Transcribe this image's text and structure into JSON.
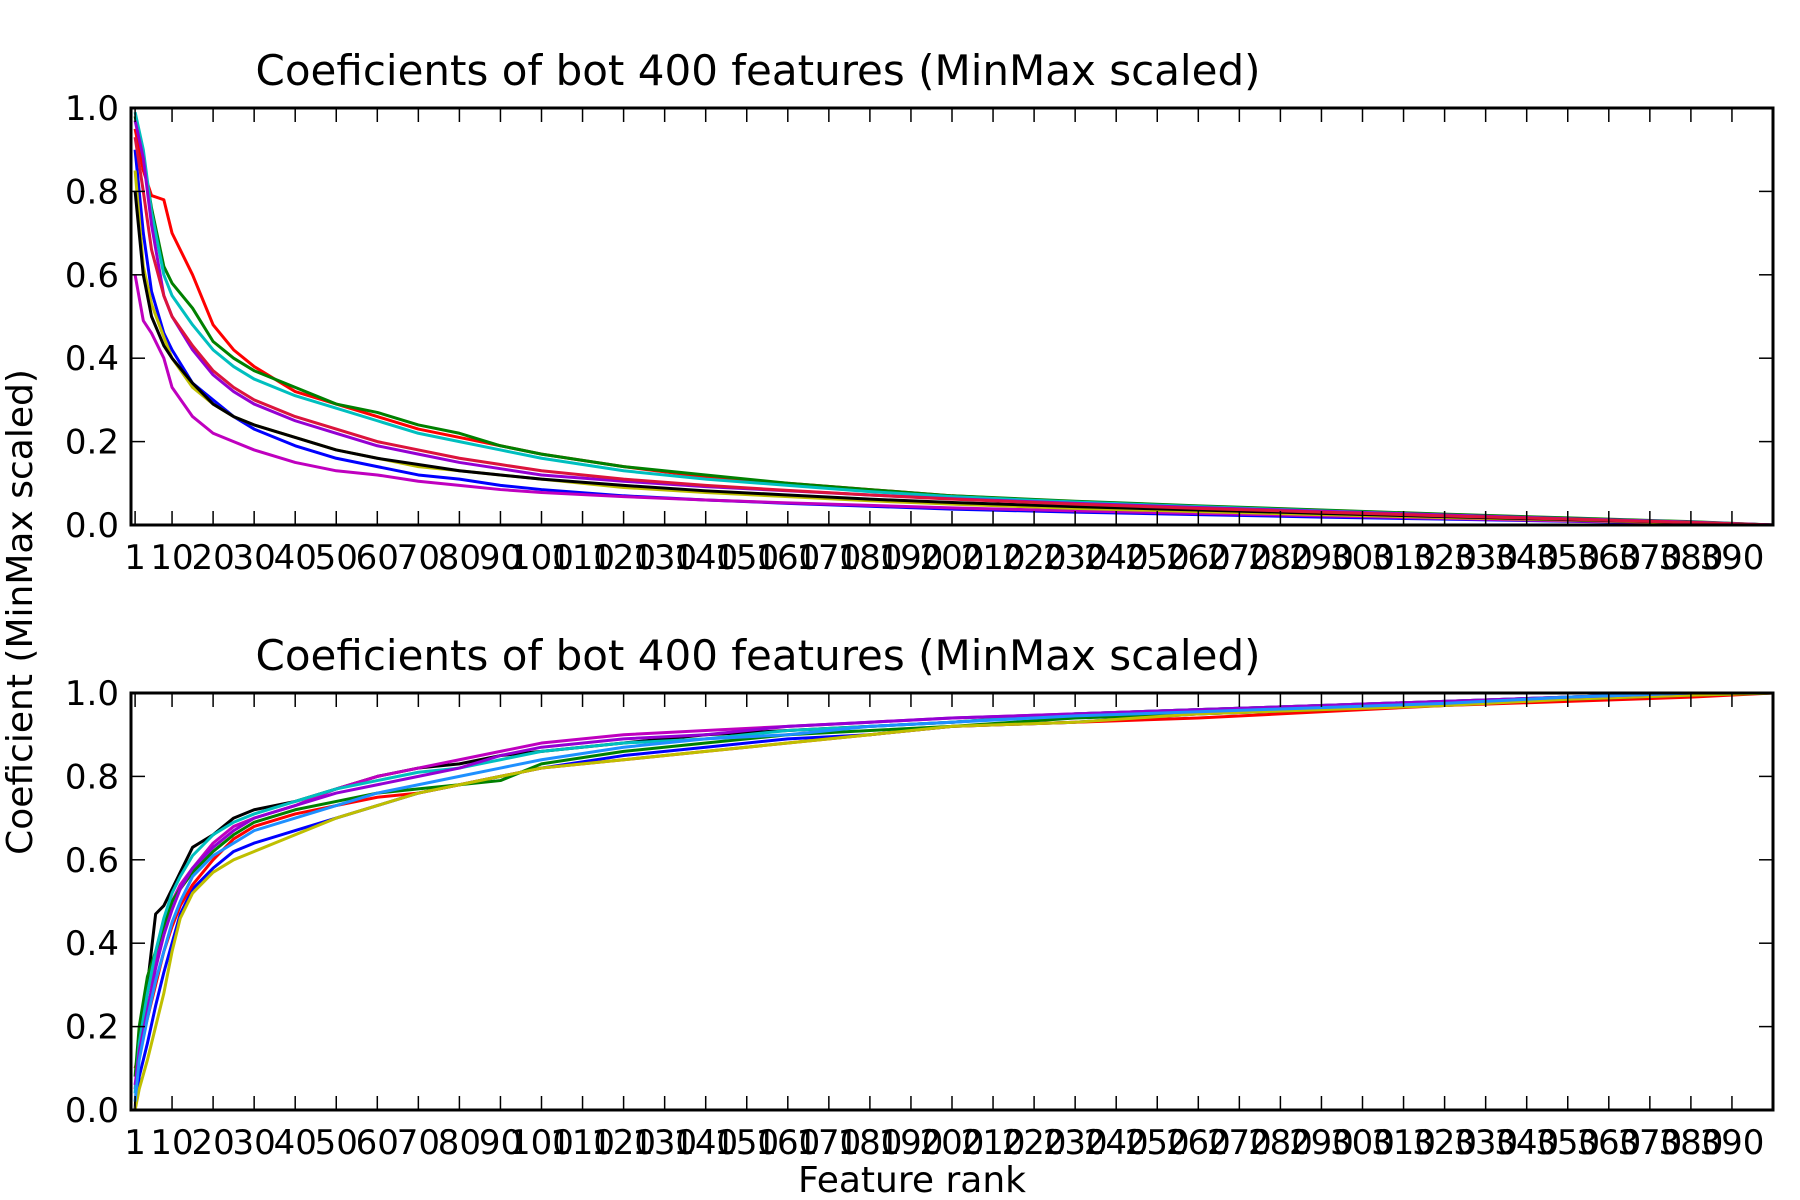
{
  "figure": {
    "ylabel": "Coeficient (MinMax scaled)",
    "xlabel": "Feature rank"
  },
  "chart_data": [
    {
      "type": "line",
      "title": "Coeficients of bot 400 features (MinMax scaled)",
      "xlabel": "",
      "ylabel": "",
      "xlim": [
        0,
        400
      ],
      "ylim": [
        0.0,
        1.0
      ],
      "grid": false,
      "legend": "none",
      "x_ticks": [
        1,
        10,
        20,
        30,
        40,
        50,
        60,
        70,
        80,
        90,
        100,
        110,
        120,
        130,
        140,
        150,
        160,
        170,
        180,
        190,
        200,
        210,
        220,
        230,
        240,
        250,
        260,
        270,
        280,
        290,
        300,
        310,
        320,
        330,
        340,
        350,
        360,
        370,
        380,
        390
      ],
      "x_tick_labels": [
        "1",
        "10",
        "20",
        "30",
        "40",
        "50",
        "60",
        "70",
        "80",
        "90",
        "100",
        "110",
        "120",
        "130",
        "140",
        "150",
        "160",
        "170",
        "180",
        "190",
        "200",
        "210",
        "220",
        "230",
        "240",
        "250",
        "260",
        "270",
        "280",
        "290",
        "300",
        "310",
        "320",
        "330",
        "340",
        "350",
        "360",
        "370",
        "380",
        "390"
      ],
      "y_ticks": [
        0.0,
        0.2,
        0.4,
        0.6,
        0.8,
        1.0
      ],
      "y_tick_labels": [
        "0.0",
        "0.2",
        "0.4",
        "0.6",
        "0.8",
        "1.0"
      ],
      "x": [
        1,
        3,
        5,
        8,
        10,
        15,
        20,
        25,
        30,
        40,
        50,
        60,
        70,
        80,
        90,
        100,
        120,
        140,
        160,
        180,
        200,
        230,
        260,
        290,
        320,
        350,
        380,
        400
      ],
      "series": [
        {
          "color": "#ff0000",
          "values": [
            0.95,
            0.85,
            0.79,
            0.78,
            0.7,
            0.6,
            0.48,
            0.42,
            0.38,
            0.32,
            0.29,
            0.26,
            0.23,
            0.21,
            0.19,
            0.17,
            0.14,
            0.115,
            0.1,
            0.085,
            0.07,
            0.055,
            0.045,
            0.035,
            0.025,
            0.016,
            0.007,
            0.0
          ]
        },
        {
          "color": "#008000",
          "values": [
            0.98,
            0.88,
            0.76,
            0.62,
            0.58,
            0.52,
            0.44,
            0.4,
            0.37,
            0.33,
            0.29,
            0.27,
            0.24,
            0.22,
            0.19,
            0.17,
            0.14,
            0.12,
            0.1,
            0.085,
            0.07,
            0.057,
            0.046,
            0.036,
            0.026,
            0.017,
            0.008,
            0.0
          ]
        },
        {
          "color": "#0000ff",
          "values": [
            0.9,
            0.7,
            0.56,
            0.46,
            0.42,
            0.34,
            0.3,
            0.26,
            0.23,
            0.19,
            0.16,
            0.14,
            0.12,
            0.11,
            0.095,
            0.085,
            0.07,
            0.06,
            0.052,
            0.045,
            0.038,
            0.031,
            0.025,
            0.019,
            0.014,
            0.009,
            0.004,
            0.0
          ]
        },
        {
          "color": "#00bfbf",
          "values": [
            0.99,
            0.9,
            0.75,
            0.6,
            0.55,
            0.48,
            0.42,
            0.38,
            0.35,
            0.31,
            0.28,
            0.25,
            0.22,
            0.2,
            0.18,
            0.16,
            0.13,
            0.11,
            0.095,
            0.08,
            0.068,
            0.055,
            0.044,
            0.034,
            0.024,
            0.015,
            0.007,
            0.0
          ]
        },
        {
          "color": "#bf00bf",
          "values": [
            0.6,
            0.49,
            0.46,
            0.4,
            0.33,
            0.26,
            0.22,
            0.2,
            0.18,
            0.15,
            0.13,
            0.12,
            0.105,
            0.095,
            0.085,
            0.078,
            0.068,
            0.06,
            0.053,
            0.047,
            0.041,
            0.034,
            0.028,
            0.022,
            0.016,
            0.01,
            0.005,
            0.0
          ]
        },
        {
          "color": "#bfbf00",
          "values": [
            0.85,
            0.62,
            0.53,
            0.45,
            0.4,
            0.33,
            0.29,
            0.26,
            0.24,
            0.21,
            0.18,
            0.16,
            0.14,
            0.13,
            0.12,
            0.11,
            0.09,
            0.078,
            0.068,
            0.058,
            0.05,
            0.04,
            0.032,
            0.025,
            0.018,
            0.012,
            0.005,
            0.0
          ]
        },
        {
          "color": "#000000",
          "values": [
            0.8,
            0.6,
            0.5,
            0.43,
            0.4,
            0.34,
            0.29,
            0.26,
            0.24,
            0.21,
            0.18,
            0.16,
            0.145,
            0.13,
            0.12,
            0.11,
            0.095,
            0.082,
            0.072,
            0.062,
            0.054,
            0.044,
            0.036,
            0.028,
            0.02,
            0.013,
            0.006,
            0.0
          ]
        },
        {
          "color": "#9400d3",
          "values": [
            0.97,
            0.88,
            0.72,
            0.55,
            0.5,
            0.42,
            0.36,
            0.32,
            0.29,
            0.25,
            0.22,
            0.19,
            0.17,
            0.15,
            0.135,
            0.12,
            0.105,
            0.092,
            0.082,
            0.072,
            0.063,
            0.052,
            0.042,
            0.033,
            0.024,
            0.015,
            0.007,
            0.0
          ]
        },
        {
          "color": "#dc143c",
          "values": [
            0.93,
            0.8,
            0.66,
            0.55,
            0.5,
            0.43,
            0.37,
            0.33,
            0.3,
            0.26,
            0.23,
            0.2,
            0.18,
            0.16,
            0.145,
            0.13,
            0.11,
            0.095,
            0.083,
            0.072,
            0.062,
            0.05,
            0.04,
            0.031,
            0.022,
            0.014,
            0.006,
            0.0
          ]
        }
      ]
    },
    {
      "type": "line",
      "title": "Coeficients of bot 400 features (MinMax scaled)",
      "xlabel": "Feature rank",
      "ylabel": "",
      "xlim": [
        0,
        400
      ],
      "ylim": [
        0.0,
        1.0
      ],
      "grid": false,
      "legend": "none",
      "x_ticks": [
        1,
        10,
        20,
        30,
        40,
        50,
        60,
        70,
        80,
        90,
        100,
        110,
        120,
        130,
        140,
        150,
        160,
        170,
        180,
        190,
        200,
        210,
        220,
        230,
        240,
        250,
        260,
        270,
        280,
        290,
        300,
        310,
        320,
        330,
        340,
        350,
        360,
        370,
        380,
        390
      ],
      "x_tick_labels": [
        "1",
        "10",
        "20",
        "30",
        "40",
        "50",
        "60",
        "70",
        "80",
        "90",
        "100",
        "110",
        "120",
        "130",
        "140",
        "150",
        "160",
        "170",
        "180",
        "190",
        "200",
        "210",
        "220",
        "230",
        "240",
        "250",
        "260",
        "270",
        "280",
        "290",
        "300",
        "310",
        "320",
        "330",
        "340",
        "350",
        "360",
        "370",
        "380",
        "390"
      ],
      "y_ticks": [
        0.0,
        0.2,
        0.4,
        0.6,
        0.8,
        1.0
      ],
      "y_tick_labels": [
        "0.0",
        "0.2",
        "0.4",
        "0.6",
        "0.8",
        "1.0"
      ],
      "x": [
        1,
        2,
        4,
        6,
        8,
        10,
        12,
        15,
        20,
        25,
        30,
        40,
        50,
        60,
        70,
        80,
        90,
        100,
        120,
        140,
        160,
        180,
        200,
        230,
        260,
        290,
        320,
        350,
        380,
        400
      ],
      "series": [
        {
          "color": "#000000",
          "values": [
            0.0,
            0.18,
            0.3,
            0.47,
            0.49,
            0.53,
            0.57,
            0.63,
            0.66,
            0.7,
            0.72,
            0.74,
            0.77,
            0.8,
            0.82,
            0.83,
            0.85,
            0.86,
            0.88,
            0.9,
            0.91,
            0.92,
            0.93,
            0.95,
            0.96,
            0.97,
            0.98,
            0.99,
            1.0,
            1.0
          ]
        },
        {
          "color": "#bf00bf",
          "values": [
            0.05,
            0.15,
            0.28,
            0.36,
            0.42,
            0.5,
            0.54,
            0.58,
            0.64,
            0.68,
            0.7,
            0.73,
            0.77,
            0.8,
            0.82,
            0.84,
            0.86,
            0.88,
            0.9,
            0.91,
            0.92,
            0.93,
            0.94,
            0.95,
            0.96,
            0.97,
            0.98,
            0.99,
            1.0,
            1.0
          ]
        },
        {
          "color": "#0000ff",
          "values": [
            0.0,
            0.08,
            0.16,
            0.25,
            0.33,
            0.4,
            0.47,
            0.53,
            0.58,
            0.62,
            0.64,
            0.67,
            0.7,
            0.73,
            0.76,
            0.78,
            0.8,
            0.82,
            0.85,
            0.87,
            0.89,
            0.9,
            0.92,
            0.93,
            0.95,
            0.96,
            0.97,
            0.985,
            0.995,
            1.0
          ]
        },
        {
          "color": "#ff0000",
          "values": [
            0.1,
            0.14,
            0.22,
            0.3,
            0.38,
            0.44,
            0.49,
            0.54,
            0.6,
            0.65,
            0.68,
            0.71,
            0.73,
            0.75,
            0.76,
            0.78,
            0.8,
            0.82,
            0.84,
            0.86,
            0.88,
            0.9,
            0.92,
            0.93,
            0.94,
            0.955,
            0.97,
            0.98,
            0.99,
            1.0
          ]
        },
        {
          "color": "#008000",
          "values": [
            0.08,
            0.2,
            0.32,
            0.38,
            0.44,
            0.5,
            0.53,
            0.57,
            0.62,
            0.66,
            0.69,
            0.72,
            0.74,
            0.76,
            0.77,
            0.78,
            0.79,
            0.83,
            0.86,
            0.88,
            0.9,
            0.91,
            0.92,
            0.94,
            0.95,
            0.96,
            0.975,
            0.985,
            0.995,
            1.0
          ]
        },
        {
          "color": "#00bfbf",
          "values": [
            0.04,
            0.16,
            0.28,
            0.38,
            0.46,
            0.52,
            0.56,
            0.61,
            0.66,
            0.69,
            0.71,
            0.74,
            0.77,
            0.79,
            0.81,
            0.82,
            0.84,
            0.86,
            0.88,
            0.89,
            0.91,
            0.92,
            0.93,
            0.95,
            0.96,
            0.97,
            0.98,
            0.99,
            1.0,
            1.0
          ]
        },
        {
          "color": "#bfbf00",
          "values": [
            0.0,
            0.05,
            0.12,
            0.2,
            0.28,
            0.38,
            0.46,
            0.52,
            0.57,
            0.6,
            0.62,
            0.66,
            0.7,
            0.73,
            0.76,
            0.78,
            0.8,
            0.82,
            0.84,
            0.86,
            0.88,
            0.9,
            0.92,
            0.93,
            0.95,
            0.96,
            0.97,
            0.985,
            0.995,
            1.0
          ]
        },
        {
          "color": "#9400d3",
          "values": [
            0.06,
            0.14,
            0.24,
            0.34,
            0.42,
            0.48,
            0.53,
            0.58,
            0.63,
            0.67,
            0.7,
            0.73,
            0.76,
            0.78,
            0.8,
            0.82,
            0.85,
            0.87,
            0.89,
            0.9,
            0.92,
            0.93,
            0.94,
            0.95,
            0.96,
            0.97,
            0.98,
            0.99,
            1.0,
            1.0
          ]
        },
        {
          "color": "#1e90ff",
          "values": [
            0.02,
            0.12,
            0.22,
            0.31,
            0.38,
            0.45,
            0.5,
            0.56,
            0.61,
            0.64,
            0.67,
            0.7,
            0.73,
            0.76,
            0.78,
            0.8,
            0.82,
            0.84,
            0.87,
            0.89,
            0.9,
            0.92,
            0.93,
            0.945,
            0.955,
            0.965,
            0.975,
            0.99,
            1.0,
            1.0
          ]
        }
      ]
    }
  ]
}
